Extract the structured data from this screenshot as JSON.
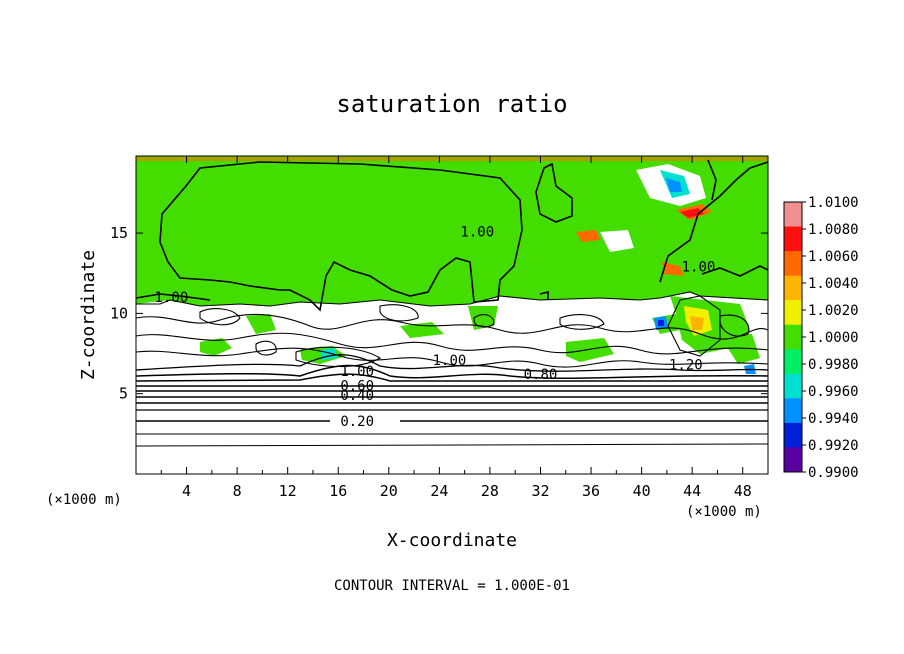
{
  "chart_data": {
    "type": "heatmap",
    "title": "saturation ratio",
    "xlabel": "X-coordinate",
    "ylabel": "Z-coordinate",
    "x_unit_left": "(×1000 m)",
    "x_unit_right": "(×1000 m)",
    "xlim": [
      0,
      50
    ],
    "ylim": [
      0,
      19.8
    ],
    "xticks": [
      "4",
      "8",
      "12",
      "16",
      "20",
      "24",
      "28",
      "32",
      "36",
      "40",
      "44",
      "48"
    ],
    "xtick_values": [
      4,
      8,
      12,
      16,
      20,
      24,
      28,
      32,
      36,
      40,
      44,
      48
    ],
    "yticks": [
      "5",
      "10",
      "15"
    ],
    "ytick_values": [
      5,
      10,
      15
    ],
    "footer": "CONTOUR INTERVAL = 1.000E-01",
    "colorbar": {
      "labels": [
        "1.0100",
        "1.0080",
        "1.0060",
        "1.0040",
        "1.0020",
        "1.0000",
        "0.9980",
        "0.9960",
        "0.9940",
        "0.9920",
        "0.9900"
      ],
      "values": [
        1.01,
        1.008,
        1.006,
        1.004,
        1.002,
        1.0,
        0.998,
        0.996,
        0.994,
        0.992,
        0.99
      ],
      "colors": [
        "#f09090",
        "#ff1010",
        "#ff6a00",
        "#ffb400",
        "#f0f000",
        "#44dd00",
        "#00ee66",
        "#00e0d0",
        "#0090ff",
        "#0020d8",
        "#5a00a0"
      ]
    },
    "field_color": "#44dd00",
    "contour_labels": [
      {
        "text": "1.00",
        "x": 2.8,
        "z": 10.7
      },
      {
        "text": "1.00",
        "x": 27.0,
        "z": 14.8
      },
      {
        "text": "1.00",
        "x": 44.5,
        "z": 12.6
      },
      {
        "text": "1.00",
        "x": 24.8,
        "z": 6.8
      },
      {
        "text": "1.20",
        "x": 43.5,
        "z": 6.5
      },
      {
        "text": "1.00",
        "x": 17.5,
        "z": 6.1
      },
      {
        "text": "0.80",
        "x": 32.0,
        "z": 5.9
      },
      {
        "text": "0.60",
        "x": 17.5,
        "z": 5.2
      },
      {
        "text": "0.40",
        "x": 17.5,
        "z": 4.6
      },
      {
        "text": "0.20",
        "x": 17.5,
        "z": 3.0
      }
    ]
  }
}
